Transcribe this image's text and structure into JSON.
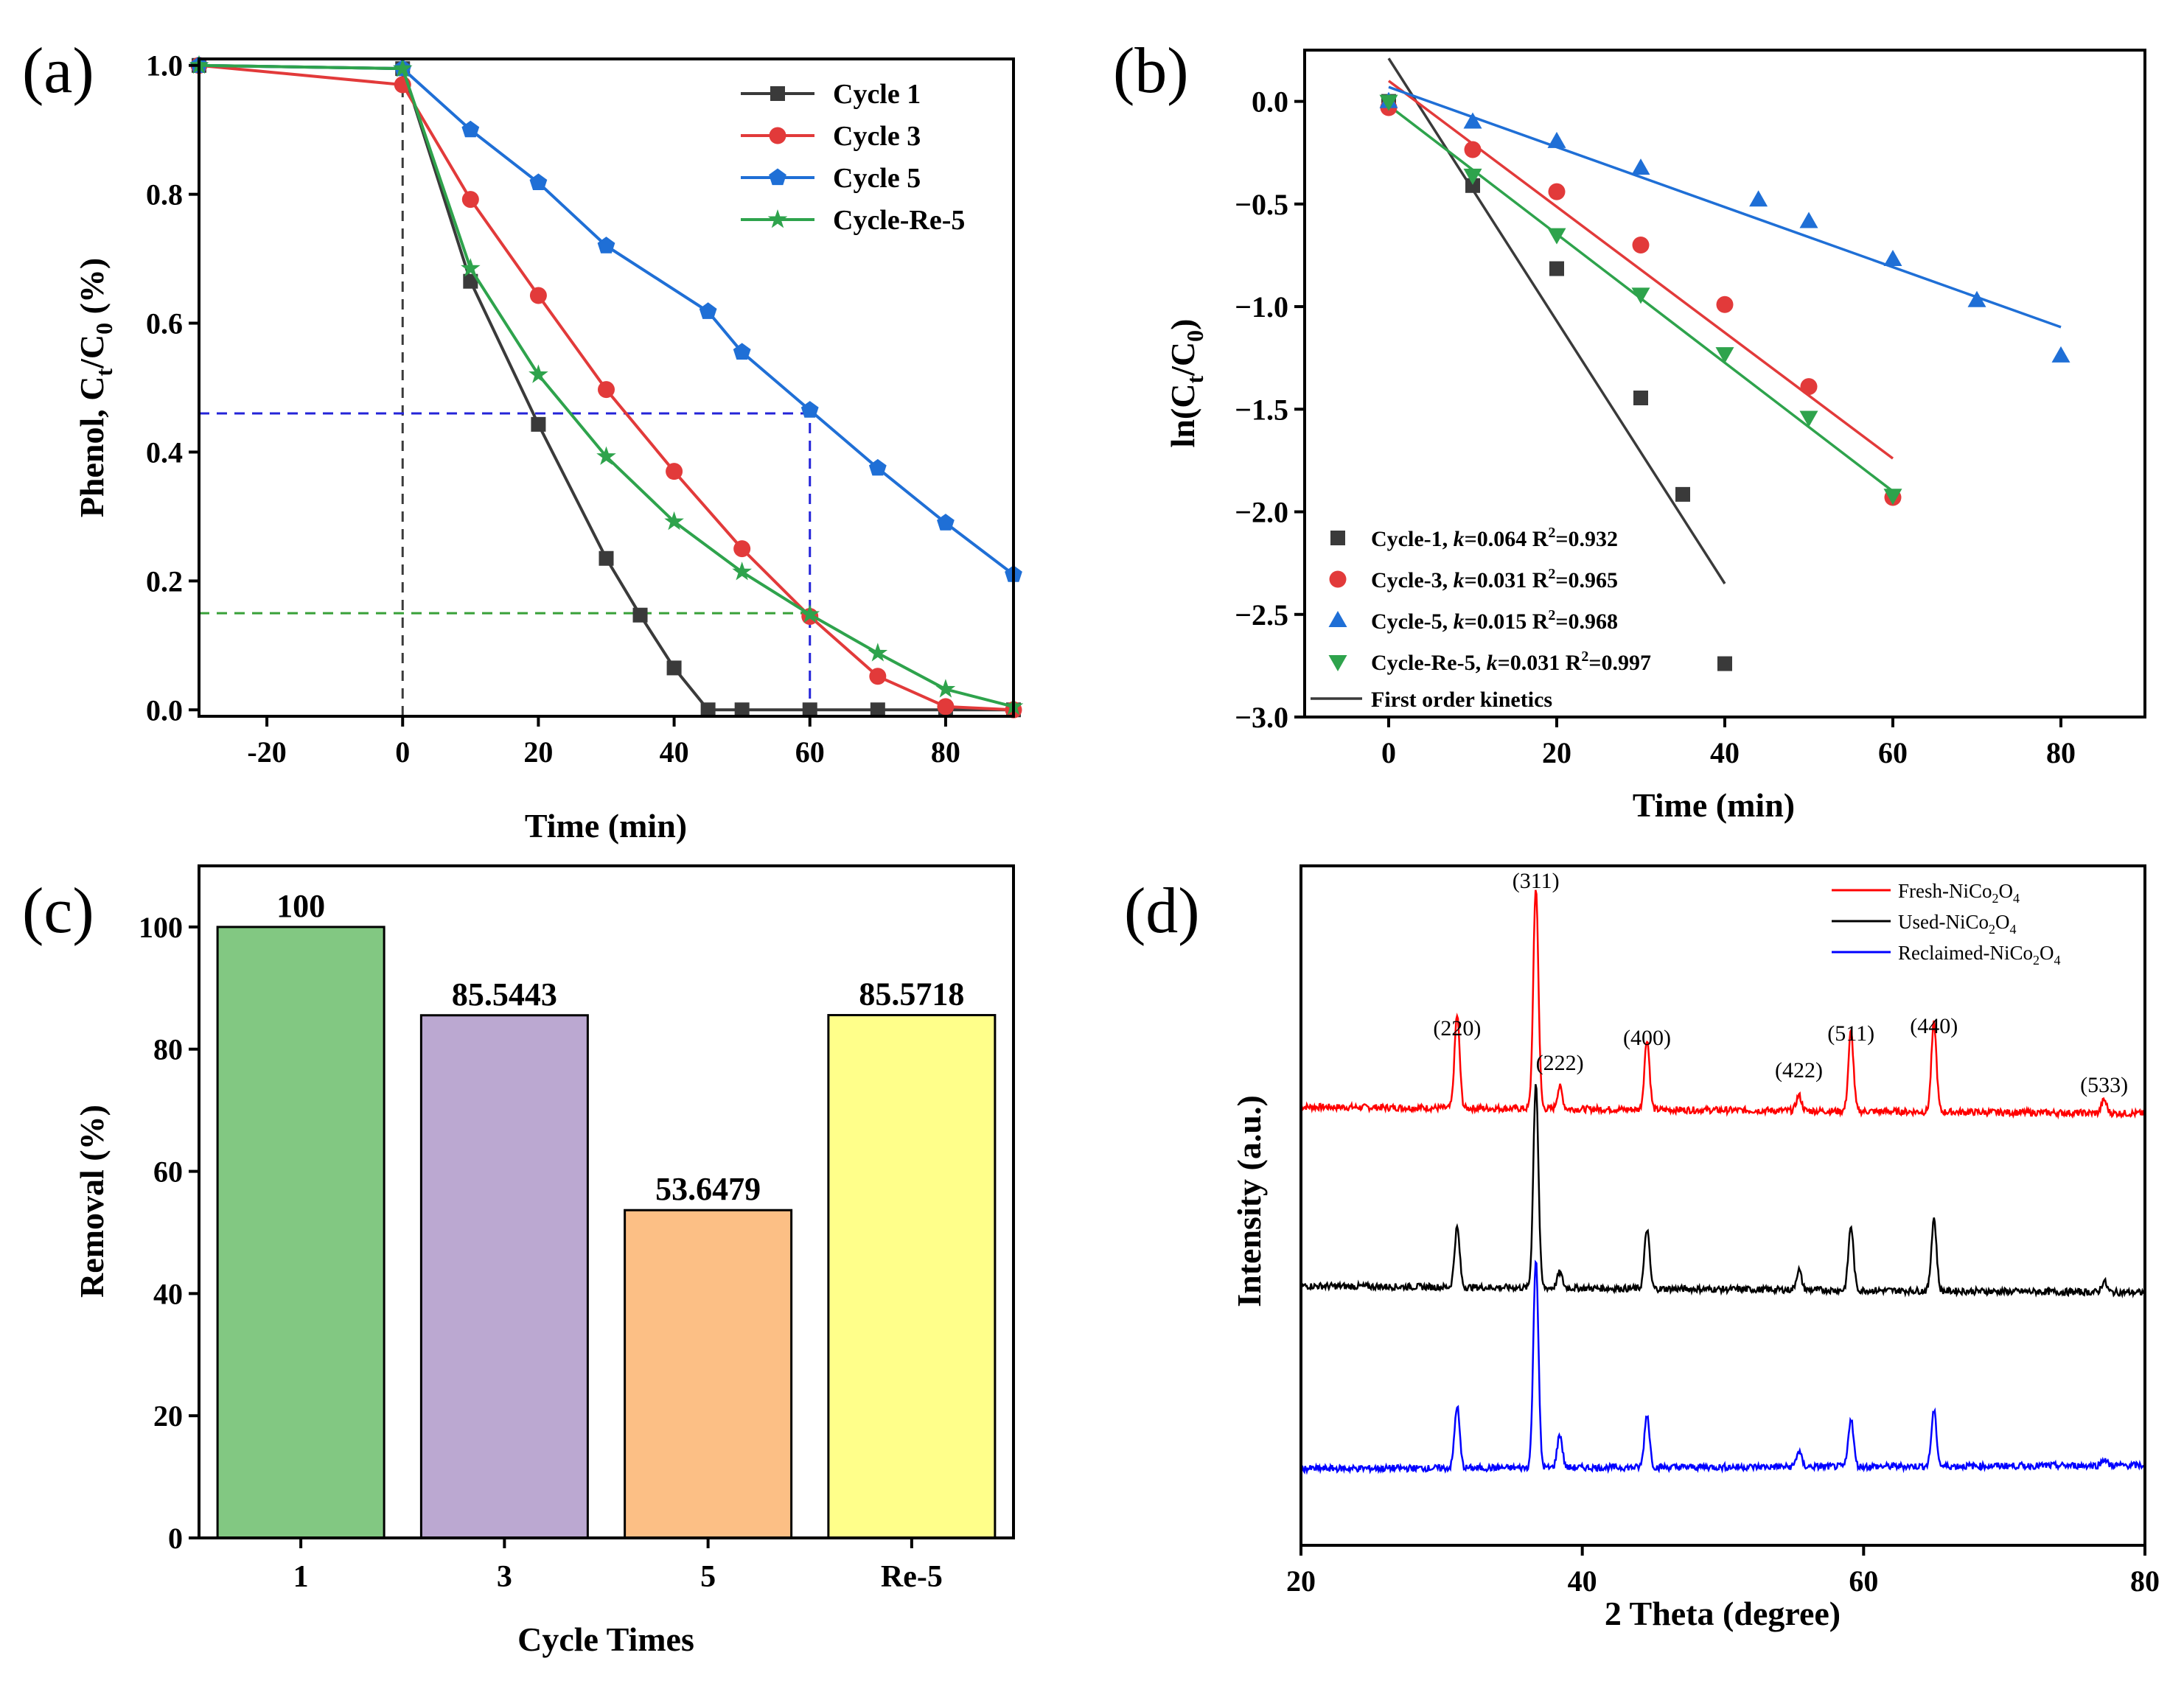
{
  "colors": {
    "black": "#3a3a3a",
    "red": "#e23a3a",
    "blue": "#1f6fd6",
    "green": "#2ea34c",
    "guide_blue": "#2424d8",
    "guide_green": "#38a038",
    "xrd_red": "#ff0000",
    "xrd_black": "#000000",
    "xrd_blue": "#0000ff",
    "bar1": "#82c882",
    "bar3": "#bba8d1",
    "bar5": "#fcbf85",
    "barRe5": "#ffff8a"
  },
  "chart_data": [
    {
      "panel": "(a)",
      "type": "line",
      "xlabel": "Time (min)",
      "ylabel": "Phenol, Ct/C0 (%)",
      "ylabel_parts": {
        "main": "Phenol, C",
        "sub1": "t",
        "mid": "/C",
        "sub2": "0",
        "tail": " (%)"
      },
      "xlim": [
        -30,
        90
      ],
      "ylim": [
        -0.01,
        1.01
      ],
      "xticks": [
        "-20",
        "0",
        "20",
        "40",
        "60",
        "80"
      ],
      "xtick_values": [
        -20,
        0,
        20,
        40,
        60,
        80
      ],
      "yticks": [
        "0.0",
        "0.2",
        "0.4",
        "0.6",
        "0.8",
        "1.0"
      ],
      "ytick_values": [
        0.0,
        0.2,
        0.4,
        0.6,
        0.8,
        1.0
      ],
      "guides": [
        {
          "orientation": "v",
          "x": 0,
          "y_from": -0.01,
          "y_to": 1.0,
          "color": "black"
        },
        {
          "orientation": "h",
          "y": 0.46,
          "x_from": -30,
          "x_to": 60,
          "color": "guide_blue"
        },
        {
          "orientation": "v",
          "x": 60,
          "y_from": -0.01,
          "y_to": 0.46,
          "color": "guide_blue"
        },
        {
          "orientation": "h",
          "y": 0.15,
          "x_from": -30,
          "x_to": 60,
          "color": "guide_green"
        }
      ],
      "series": [
        {
          "name": "Cycle 1",
          "color": "black",
          "marker": "square",
          "x": [
            -30,
            0,
            10,
            20,
            30,
            35,
            40,
            45,
            50,
            60,
            70,
            80,
            90
          ],
          "y": [
            1.0,
            0.995,
            0.665,
            0.443,
            0.235,
            0.147,
            0.065,
            0.0,
            0.0,
            0.0,
            0.0,
            0.0,
            0.0
          ]
        },
        {
          "name": "Cycle 3",
          "color": "red",
          "marker": "circle",
          "x": [
            -30,
            0,
            10,
            20,
            30,
            40,
            50,
            60,
            70,
            80,
            90
          ],
          "y": [
            1.0,
            0.97,
            0.792,
            0.643,
            0.497,
            0.37,
            0.25,
            0.145,
            0.052,
            0.005,
            0.0
          ]
        },
        {
          "name": "Cycle 5",
          "color": "blue",
          "marker": "pentagon",
          "x": [
            -30,
            0,
            10,
            20,
            30,
            45,
            50,
            60,
            70,
            80,
            90
          ],
          "y": [
            1.0,
            0.995,
            0.9,
            0.818,
            0.72,
            0.618,
            0.555,
            0.465,
            0.375,
            0.29,
            0.21
          ]
        },
        {
          "name": "Cycle-Re-5",
          "color": "green",
          "marker": "star",
          "x": [
            -30,
            0,
            10,
            20,
            30,
            40,
            50,
            60,
            70,
            80,
            90
          ],
          "y": [
            1.0,
            0.995,
            0.685,
            0.52,
            0.393,
            0.292,
            0.214,
            0.148,
            0.088,
            0.032,
            0.005
          ]
        }
      ]
    },
    {
      "panel": "(b)",
      "type": "scatter",
      "xlabel": "Time (min)",
      "ylabel": "ln(Ct/C0)",
      "ylabel_parts": {
        "main": "ln(C",
        "sub1": "t",
        "mid": "/C",
        "sub2": "0",
        "tail": ")"
      },
      "xlim": [
        -10,
        90
      ],
      "ylim": [
        -3.0,
        0.25
      ],
      "xticks": [
        "0",
        "20",
        "40",
        "60",
        "80"
      ],
      "xtick_values": [
        0,
        20,
        40,
        60,
        80
      ],
      "yticks": [
        "0.0",
        "-0.5",
        "-1.0",
        "-1.5",
        "-2.0",
        "-2.5",
        "-3.0"
      ],
      "ytick_values": [
        0.0,
        -0.5,
        -1.0,
        -1.5,
        -2.0,
        -2.5,
        -3.0
      ],
      "series": [
        {
          "name": "Cycle-1",
          "k": "0.064",
          "r2": "0.932",
          "color": "black",
          "marker": "square",
          "x": [
            0,
            10,
            20,
            30,
            35,
            40
          ],
          "y": [
            0.0,
            -0.41,
            -0.815,
            -1.445,
            -1.915,
            -2.74
          ],
          "fit": {
            "x": [
              0,
              40
            ],
            "y": [
              0.21,
              -2.35
            ]
          }
        },
        {
          "name": "Cycle-3",
          "k": "0.031",
          "r2": "0.965",
          "color": "red",
          "marker": "circle",
          "x": [
            0,
            10,
            20,
            30,
            40,
            50,
            60
          ],
          "y": [
            -0.03,
            -0.235,
            -0.44,
            -0.7,
            -0.99,
            -1.39,
            -1.93
          ],
          "fit": {
            "x": [
              0,
              60
            ],
            "y": [
              0.1,
              -1.74
            ]
          }
        },
        {
          "name": "Cycle-5",
          "k": "0.015",
          "r2": "0.968",
          "color": "blue",
          "marker": "triangle-up",
          "x": [
            0,
            10,
            20,
            30,
            44,
            50,
            60,
            70,
            80
          ],
          "y": [
            0.0,
            -0.1,
            -0.195,
            -0.325,
            -0.48,
            -0.585,
            -0.77,
            -0.97,
            -1.24
          ],
          "fit": {
            "x": [
              0,
              80
            ],
            "y": [
              0.07,
              -1.1
            ]
          }
        },
        {
          "name": "Cycle-Re-5",
          "k": "0.031",
          "r2": "0.997",
          "color": "green",
          "marker": "triangle-down",
          "x": [
            0,
            10,
            20,
            30,
            40,
            50,
            60
          ],
          "y": [
            0.0,
            -0.36,
            -0.65,
            -0.94,
            -1.23,
            -1.54,
            -1.92
          ],
          "fit": {
            "x": [
              0,
              60
            ],
            "y": [
              -0.02,
              -1.9
            ]
          }
        }
      ],
      "legend_fit_label": "First order kinetics",
      "legend_k_prefix": ", ",
      "legend_k_symbol": "k",
      "legend_k_eq": "=",
      "legend_r2_prefix": "R",
      "legend_r2_sup": "2",
      "legend_r2_eq": "="
    },
    {
      "panel": "(c)",
      "type": "bar",
      "xlabel": "Cycle Times",
      "ylabel": "Removal (%)",
      "ylim": [
        0,
        110
      ],
      "yticks": [
        "0",
        "20",
        "40",
        "60",
        "80",
        "100"
      ],
      "ytick_values": [
        0,
        20,
        40,
        60,
        80,
        100
      ],
      "categories": [
        "1",
        "3",
        "5",
        "Re-5"
      ],
      "values": [
        100,
        85.5443,
        53.6479,
        85.5718
      ],
      "value_labels": [
        "100",
        "85.5443",
        "53.6479",
        "85.5718"
      ],
      "bar_colors": [
        "bar1",
        "bar3",
        "bar5",
        "barRe5"
      ]
    },
    {
      "panel": "(d)",
      "type": "line",
      "xlabel": "2 Theta (degree)",
      "ylabel": "Intensity (a.u.)",
      "xlim": [
        20,
        80
      ],
      "xticks": [
        "20",
        "40",
        "60",
        "80"
      ],
      "xtick_values": [
        20,
        40,
        60,
        80
      ],
      "peak_positions": [
        31.1,
        36.7,
        38.4,
        44.6,
        55.4,
        59.1,
        65.0,
        77.1
      ],
      "peak_labels": [
        {
          "x": 31.1,
          "text": "(220)"
        },
        {
          "x": 36.7,
          "text": "(311)"
        },
        {
          "x": 38.4,
          "text": "(222)"
        },
        {
          "x": 44.6,
          "text": "(400)"
        },
        {
          "x": 55.4,
          "text": "(422)"
        },
        {
          "x": 59.1,
          "text": "(511)"
        },
        {
          "x": 65.0,
          "text": "(440)"
        },
        {
          "x": 77.1,
          "text": "(533)"
        }
      ],
      "series": [
        {
          "name": "Fresh-NiCo2O4",
          "prefix": "Fresh-NiCo",
          "color": "xrd_red",
          "peak_heights": [
            0.42,
            1.0,
            0.1,
            0.32,
            0.07,
            0.36,
            0.4,
            0.06
          ]
        },
        {
          "name": "Used-NiCo2O4",
          "prefix": "Used-NiCo",
          "color": "xrd_black",
          "peak_heights": [
            0.27,
            0.93,
            0.07,
            0.27,
            0.09,
            0.29,
            0.33,
            0.05
          ]
        },
        {
          "name": "Reclaimed-NiCo2O4",
          "prefix": "Reclaimed-NiCo",
          "color": "xrd_blue",
          "peak_heights": [
            0.28,
            0.95,
            0.15,
            0.24,
            0.07,
            0.22,
            0.25,
            0.03
          ]
        }
      ],
      "formula_parts": {
        "sub1": "2",
        "mid": "O",
        "sub2": "4"
      }
    }
  ]
}
